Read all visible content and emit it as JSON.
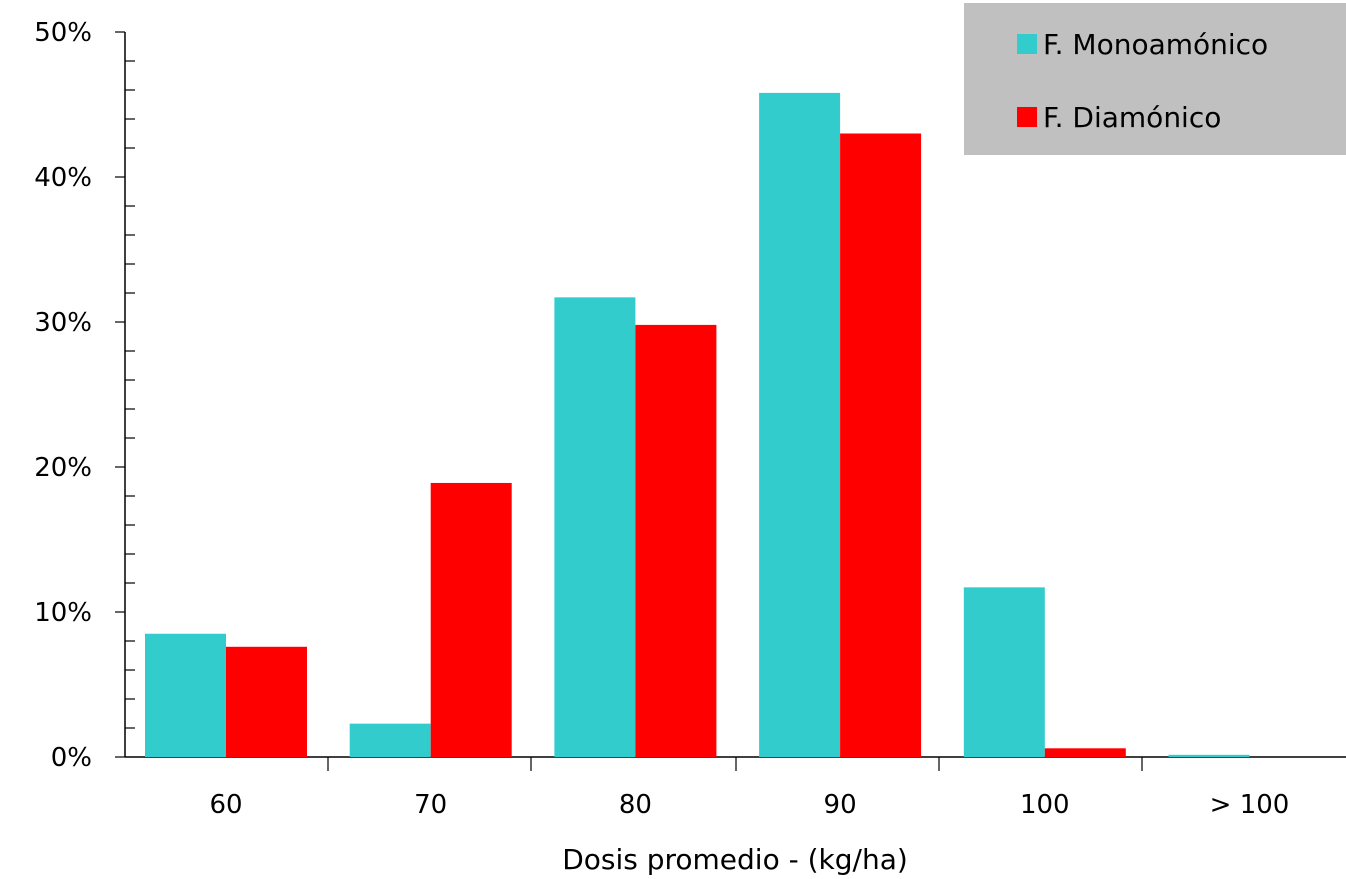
{
  "chart_data": {
    "type": "bar",
    "categories": [
      "60",
      "70",
      "80",
      "90",
      "100",
      "> 100"
    ],
    "series": [
      {
        "name": "F. Monoamónico",
        "color": "#33cccc",
        "values": [
          8.5,
          2.3,
          31.7,
          45.8,
          11.7,
          0.15
        ]
      },
      {
        "name": "F. Diamónico",
        "color": "#ff0000",
        "values": [
          7.6,
          18.9,
          29.8,
          43.0,
          0.6,
          0
        ]
      }
    ],
    "title": "",
    "xlabel": "Dosis promedio - (kg/ha)",
    "ylabel": "",
    "ylim": [
      0,
      50
    ],
    "yticks": [
      "0%",
      "10%",
      "20%",
      "30%",
      "40%",
      "50%"
    ],
    "grid": false,
    "legend": {
      "position": "top-right",
      "background": "#c0c0c0"
    }
  }
}
